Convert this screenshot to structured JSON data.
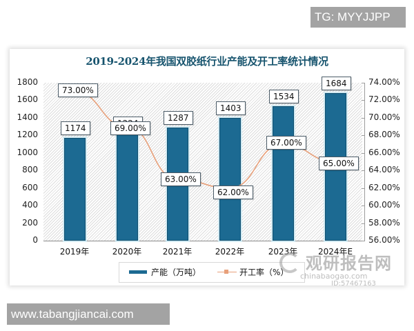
{
  "overlay": {
    "tg_badge": "TG: MYYJJPP",
    "site_badge": "www.tabangjiancai.com",
    "watermark_brand": "观研报告网",
    "watermark_domain": "chinabaogao.com",
    "watermark_id": "ID:57467163"
  },
  "chart_data": {
    "type": "bar+line",
    "title": "2019-2024年我国双胶纸行业产能及开工率统计情况",
    "categories": [
      "2019年",
      "2020年",
      "2021年",
      "2022年",
      "2023年",
      "2024年E"
    ],
    "series": [
      {
        "name": "产能（万吨）",
        "type": "bar",
        "axis": "left",
        "values": [
          1174,
          1224,
          1287,
          1403,
          1534,
          1684
        ],
        "labels": [
          "1174",
          "1224",
          "1287",
          "1403",
          "1534",
          "1684"
        ],
        "color": "#1c6a92"
      },
      {
        "name": "开工率（%）",
        "type": "line",
        "axis": "right",
        "values": [
          73.0,
          69.0,
          63.0,
          62.0,
          67.0,
          65.0
        ],
        "labels": [
          "73.00%",
          "69.00%",
          "63.00%",
          "62.00%",
          "67.00%",
          "65.00%"
        ],
        "color": "#e8a07a"
      }
    ],
    "left_axis": {
      "ylim": [
        0,
        1800
      ],
      "ticks": [
        "1800",
        "1600",
        "1400",
        "1200",
        "1000",
        "800",
        "600",
        "400",
        "200",
        "0"
      ]
    },
    "right_axis": {
      "ylim": [
        56,
        74
      ],
      "ticks": [
        "74.00%",
        "72.00%",
        "70.00%",
        "68.00%",
        "66.00%",
        "64.00%",
        "62.00%",
        "60.00%",
        "58.00%",
        "56.00%"
      ]
    },
    "legend": {
      "position": "bottom",
      "items": [
        "产能（万吨）",
        "开工率（%）"
      ]
    },
    "grid": false
  }
}
